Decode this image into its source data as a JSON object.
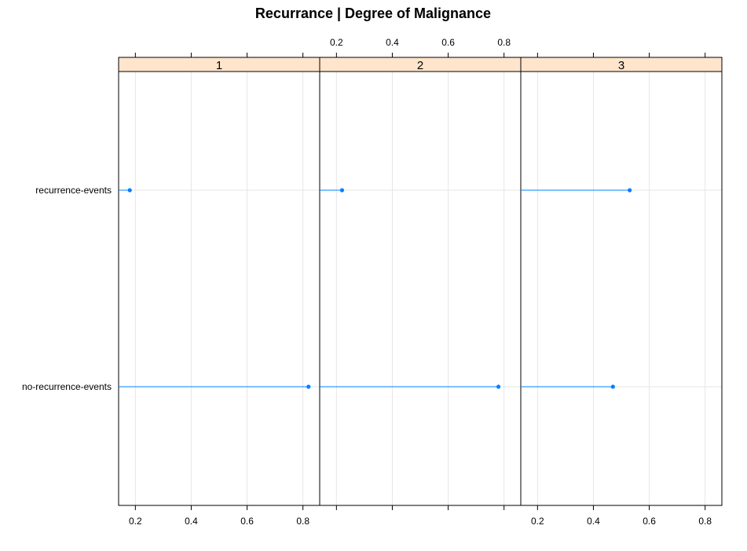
{
  "chart_data": {
    "type": "dotplot",
    "title": "Recurrance | Degree of Malignance",
    "categories": [
      "recurrence-events",
      "no-recurrence-events"
    ],
    "xlim": [
      0.14,
      0.86
    ],
    "xticks": [
      0.2,
      0.4,
      0.6,
      0.8
    ],
    "xtick_labels": [
      "0.2",
      "0.4",
      "0.6",
      "0.8"
    ],
    "panels": [
      {
        "strip": "1",
        "values": [
          0.18,
          0.82
        ]
      },
      {
        "strip": "2",
        "values": [
          0.22,
          0.78
        ]
      },
      {
        "strip": "3",
        "values": [
          0.53,
          0.47
        ]
      }
    ],
    "grid": true
  },
  "colors": {
    "point": "#0080ff",
    "strip_bg": "#ffe5cc",
    "grid": "#e6e6e6",
    "frame": "#000000"
  }
}
